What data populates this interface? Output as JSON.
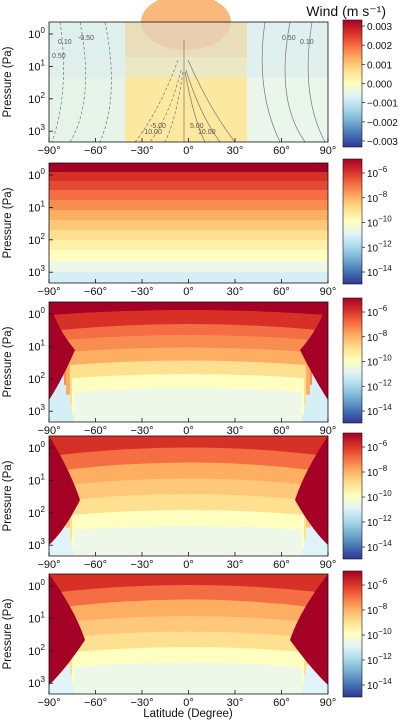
{
  "title": "Wind (m s⁻¹)",
  "xlabel": "Latitude (Degree)",
  "ylabel": "Pressure (Pa)",
  "x_ticks": [
    "−90°",
    "−60°",
    "−30°",
    "0°",
    "30°",
    "60°",
    "90°"
  ],
  "y_ticks": [
    {
      "base": "10",
      "exp": "0"
    },
    {
      "base": "10",
      "exp": "1"
    },
    {
      "base": "10",
      "exp": "2"
    },
    {
      "base": "10",
      "exp": "3"
    }
  ],
  "colorbar_ticks": {
    "wind": [
      "0.003",
      "0.002",
      "0.001",
      "0.000",
      "−0.001",
      "−0.002",
      "−0.003"
    ],
    "concentration": [
      {
        "base": "10",
        "exp": "−6"
      },
      {
        "base": "10",
        "exp": "−8"
      },
      {
        "base": "10",
        "exp": "−10"
      },
      {
        "base": "10",
        "exp": "−12"
      },
      {
        "base": "10",
        "exp": "−14"
      }
    ]
  },
  "contour_labels": [
    "0.50",
    "0.10",
    "-0.50",
    "-0.10",
    "-5.00",
    "-10.00",
    "5.00",
    "10.00",
    "0.50",
    "0.10"
  ],
  "colors": {
    "cmap": [
      "#313695",
      "#4575b4",
      "#74add1",
      "#abd9e9",
      "#e0f3f8",
      "#ffffbf",
      "#fee090",
      "#fdae61",
      "#f46d43",
      "#d73027",
      "#a50026"
    ]
  },
  "chart_data": [
    {
      "type": "heatmap",
      "panel": 1,
      "variable": "wind",
      "colorbar_range": [
        -0.003,
        0.003
      ],
      "x_range": [
        -90,
        90
      ],
      "y_range_pa": [
        0.5,
        1000
      ],
      "y_scale": "log-reversed",
      "contour_levels": [
        -10.0,
        -5.0,
        -0.5,
        -0.1,
        0.1,
        0.5,
        5.0,
        10.0
      ]
    },
    {
      "type": "heatmap",
      "panel": 2,
      "colorbar_range_log10": [
        -15,
        -5
      ],
      "x_range": [
        -90,
        90
      ],
      "y_range_pa": [
        0.5,
        1000
      ],
      "y_scale": "log-reversed"
    },
    {
      "type": "heatmap",
      "panel": 3,
      "colorbar_range_log10": [
        -15,
        -5
      ],
      "x_range": [
        -90,
        90
      ],
      "y_range_pa": [
        0.5,
        1000
      ],
      "y_scale": "log-reversed"
    },
    {
      "type": "heatmap",
      "panel": 4,
      "colorbar_range_log10": [
        -15,
        -5
      ],
      "x_range": [
        -90,
        90
      ],
      "y_range_pa": [
        0.5,
        1000
      ],
      "y_scale": "log-reversed"
    },
    {
      "type": "heatmap",
      "panel": 5,
      "colorbar_range_log10": [
        -15,
        -5
      ],
      "x_range": [
        -90,
        90
      ],
      "y_range_pa": [
        0.5,
        1000
      ],
      "y_scale": "log-reversed"
    }
  ]
}
